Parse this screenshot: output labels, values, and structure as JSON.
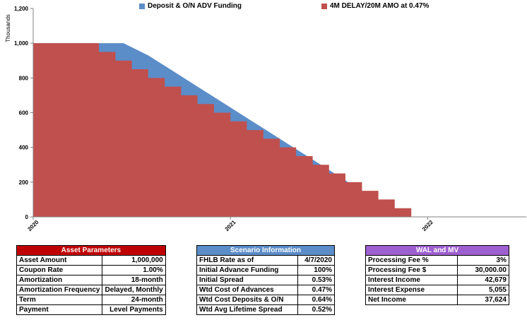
{
  "chart_data": {
    "type": "area",
    "title": "",
    "xlabel": "",
    "ylabel": "Thousands",
    "ylim": [
      0,
      1200
    ],
    "yticks": [
      0,
      200,
      400,
      600,
      800,
      1000,
      1200
    ],
    "ytick_labels": [
      "0",
      "200",
      "400",
      "600",
      "800",
      "1,000",
      "1,200"
    ],
    "xlim": [
      2020.0,
      2022.5
    ],
    "xticks": [
      2020,
      2021,
      2022
    ],
    "xtick_labels": [
      "2020",
      "2021",
      "2022"
    ],
    "grid": false,
    "legend_position": "top",
    "series": [
      {
        "name": "Deposit & O/N ADV Funding",
        "color": "#5b8dc9",
        "style": "smooth",
        "x": [
          2020.0,
          2020.333,
          2020.458,
          2020.583,
          2020.667,
          2020.75,
          2020.833,
          2020.917,
          2021.0,
          2021.083,
          2021.167,
          2021.25,
          2021.333,
          2021.417,
          2021.5,
          2021.583,
          2021.667,
          2021.75,
          2021.833,
          2021.917,
          2022.5
        ],
        "values": [
          1000,
          1000,
          1000,
          930,
          870,
          810,
          750,
          690,
          630,
          570,
          510,
          450,
          390,
          330,
          270,
          210,
          150,
          90,
          35,
          0,
          0
        ]
      },
      {
        "name": "4M DELAY/20M AMO at 0.47%",
        "color": "#c0504d",
        "style": "step",
        "x": [
          2020.0,
          2020.333,
          2020.417,
          2020.5,
          2020.583,
          2020.667,
          2020.75,
          2020.833,
          2020.917,
          2021.0,
          2021.083,
          2021.167,
          2021.25,
          2021.333,
          2021.417,
          2021.5,
          2021.583,
          2021.667,
          2021.75,
          2021.833,
          2021.917,
          2022.0,
          2022.5
        ],
        "values": [
          1000,
          950,
          900,
          850,
          800,
          750,
          700,
          650,
          600,
          550,
          500,
          450,
          400,
          350,
          300,
          250,
          200,
          150,
          100,
          50,
          0,
          0,
          0
        ]
      }
    ]
  },
  "asset_panel": {
    "title": "Asset Parameters",
    "rows": [
      {
        "label": "Asset Amount",
        "value": "1,000,000"
      },
      {
        "label": "Coupon Rate",
        "value": "1.00%"
      },
      {
        "label": "Amortization",
        "value": "18-month"
      },
      {
        "label": "Amortization Frequency",
        "value": "Delayed, Monthly"
      },
      {
        "label": "Term",
        "value": "24-month"
      },
      {
        "label": "Payment",
        "value": "Level Payments"
      }
    ]
  },
  "scenario_panel": {
    "title": "Scenario Information",
    "rows": [
      {
        "label": "FHLB Rate as of",
        "value": "4/7/2020"
      },
      {
        "label": "Initial Advance Funding",
        "value": "100%"
      },
      {
        "label": "Initial Spread",
        "value": "0.53%"
      },
      {
        "label": "Wtd Cost of Advances",
        "value": "0.47%"
      },
      {
        "label": "Wtd Cost Deposits & O/N",
        "value": "0.64%"
      },
      {
        "label": "Wtd Avg Lifetime Spread",
        "value": "0.52%"
      }
    ]
  },
  "wal_panel": {
    "title": "WAL and MV",
    "rows": [
      {
        "label": "Processing Fee %",
        "value": "3%"
      },
      {
        "label": "Processing Fee $",
        "value": "30,000.00"
      },
      {
        "label": "Interest Income",
        "value": "42,679"
      },
      {
        "label": "Interest Expense",
        "value": "5,055"
      },
      {
        "label": "Net Income",
        "value": "37,624"
      }
    ]
  }
}
